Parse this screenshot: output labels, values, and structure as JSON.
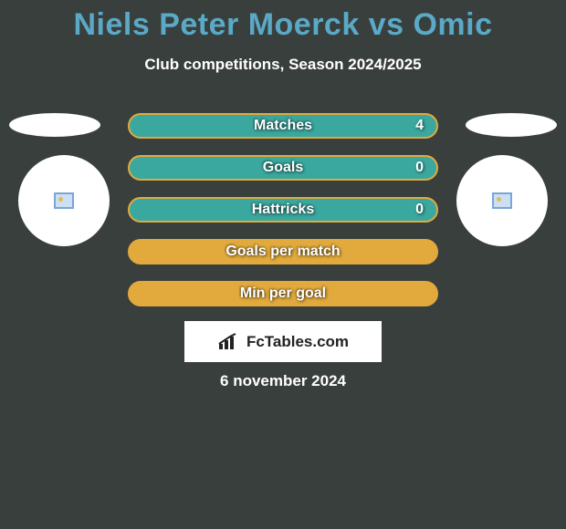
{
  "title_color": "#5aa9c6",
  "title": "Niels Peter Moerck vs Omic",
  "subtitle": "Club competitions, Season 2024/2025",
  "date": "6 november 2024",
  "site_name": "FcTables.com",
  "colors": {
    "background": "#393f3d",
    "bar_fill_teal": "#3aa89f",
    "bar_fill_orange": "#e2aa3c",
    "bar_border_orange": "#e2aa3c",
    "text": "#ffffff"
  },
  "bars": [
    {
      "label": "Matches",
      "value": "4",
      "fill": "#3aa89f",
      "border": "#e2aa3c",
      "show_value": true
    },
    {
      "label": "Goals",
      "value": "0",
      "fill": "#3aa89f",
      "border": "#e2aa3c",
      "show_value": true
    },
    {
      "label": "Hattricks",
      "value": "0",
      "fill": "#3aa89f",
      "border": "#e2aa3c",
      "show_value": true
    },
    {
      "label": "Goals per match",
      "value": "",
      "fill": "#e2aa3c",
      "border": "#e2aa3c",
      "show_value": false
    },
    {
      "label": "Min per goal",
      "value": "",
      "fill": "#e2aa3c",
      "border": "#e2aa3c",
      "show_value": false
    }
  ]
}
